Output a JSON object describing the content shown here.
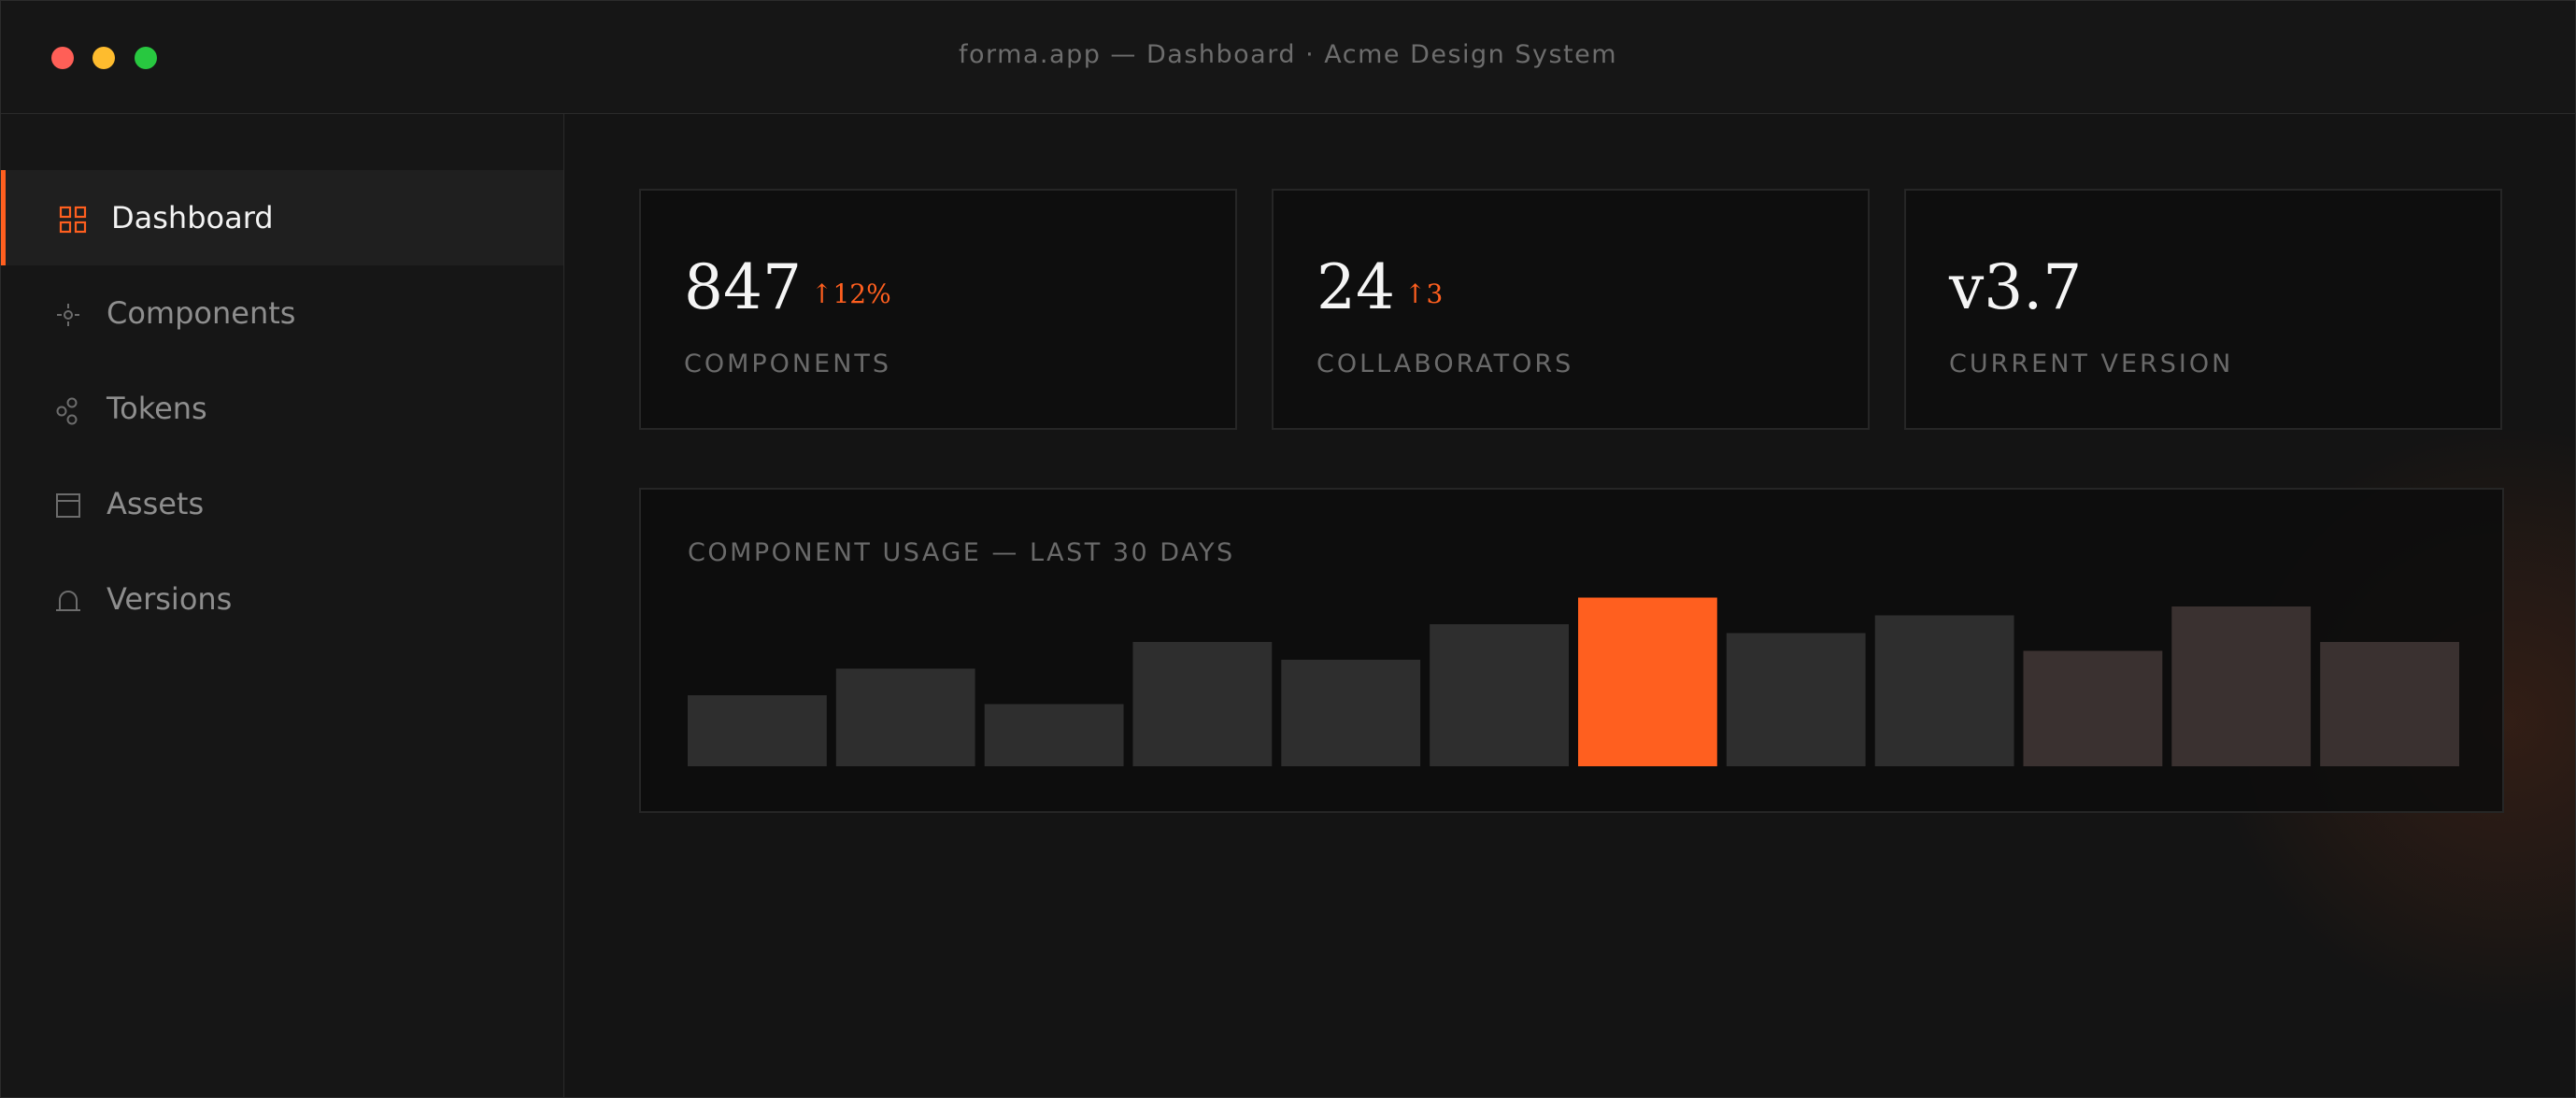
{
  "window": {
    "title": "forma.app — Dashboard · Acme Design System"
  },
  "sidebar": {
    "items": [
      {
        "label": "Dashboard",
        "icon": "grid-icon",
        "active": true
      },
      {
        "label": "Components",
        "icon": "component-icon",
        "active": false
      },
      {
        "label": "Tokens",
        "icon": "tokens-icon",
        "active": false
      },
      {
        "label": "Assets",
        "icon": "assets-icon",
        "active": false
      },
      {
        "label": "Versions",
        "icon": "versions-icon",
        "active": false
      }
    ]
  },
  "stats": [
    {
      "value": "847",
      "delta": "↑12%",
      "label": "COMPONENTS"
    },
    {
      "value": "24",
      "delta": "↑3",
      "label": "COLLABORATORS"
    },
    {
      "value": "v3.7",
      "delta": "",
      "label": "CURRENT VERSION"
    }
  ],
  "colors": {
    "accent": "#ff5f1f",
    "bar": "#2e2e2e",
    "bar_warm": "#3a3130"
  },
  "chart_data": {
    "type": "bar",
    "title": "COMPONENT USAGE — LAST 30 DAYS",
    "values": [
      40,
      55,
      35,
      70,
      60,
      80,
      95,
      75,
      85,
      65,
      90,
      70
    ],
    "highlight_index": 6,
    "ylim": [
      0,
      100
    ]
  }
}
